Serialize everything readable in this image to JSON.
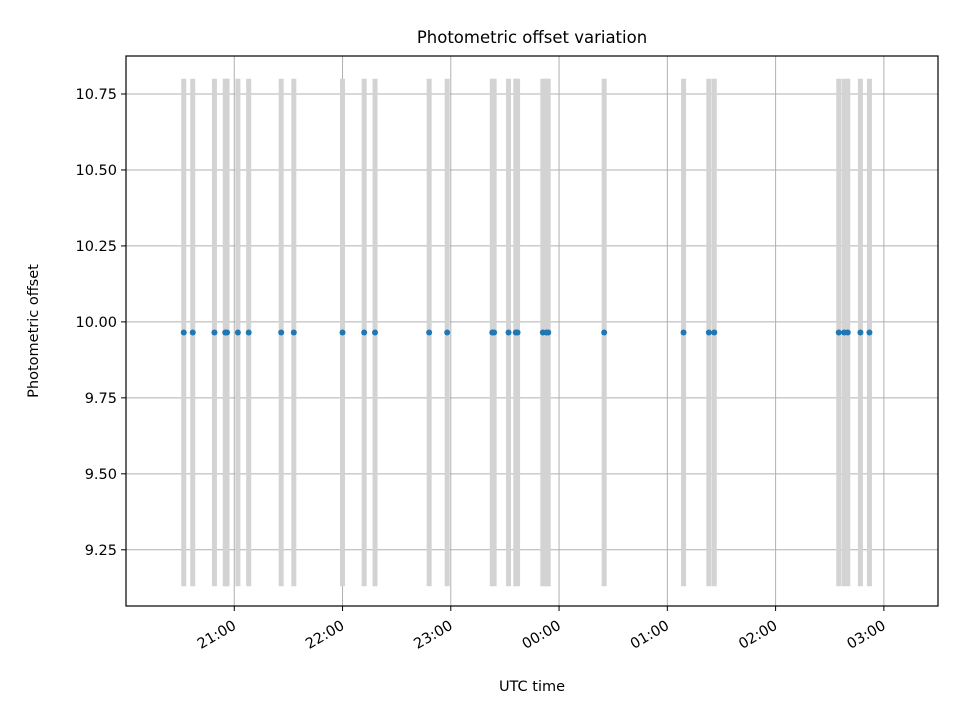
{
  "chart_data": {
    "type": "scatter",
    "title": "Photometric offset variation",
    "xlabel": "UTC time",
    "ylabel": "Photometric offset",
    "x_axis": {
      "kind": "time",
      "start": "20:00",
      "end": "03:30",
      "ticks": [
        {
          "time": "21:00",
          "label": "21:00"
        },
        {
          "time": "22:00",
          "label": "22:00"
        },
        {
          "time": "23:00",
          "label": "23:00"
        },
        {
          "time": "00:00",
          "label": "00:00"
        },
        {
          "time": "01:00",
          "label": "01:00"
        },
        {
          "time": "02:00",
          "label": "02:00"
        },
        {
          "time": "03:00",
          "label": "03:00"
        }
      ]
    },
    "y_axis": {
      "range": [
        9.065,
        10.875
      ],
      "ticks": [
        {
          "value": 9.25,
          "label": "9.25"
        },
        {
          "value": 9.5,
          "label": "9.50"
        },
        {
          "value": 9.75,
          "label": "9.75"
        },
        {
          "value": 10.0,
          "label": "10.00"
        },
        {
          "value": 10.25,
          "label": "10.25"
        },
        {
          "value": 10.5,
          "label": "10.50"
        },
        {
          "value": 10.75,
          "label": "10.75"
        }
      ]
    },
    "grid": true,
    "error_bar_range": [
      9.13,
      10.8
    ],
    "series": [
      {
        "marker_color": "#1f77b4",
        "error_bar_color": "#d3d3d3",
        "x": [
          "20:32",
          "20:37",
          "20:49",
          "20:55",
          "20:56",
          "21:02",
          "21:08",
          "21:26",
          "21:33",
          "22:00",
          "22:12",
          "22:18",
          "22:48",
          "22:58",
          "23:23",
          "23:24",
          "23:32",
          "23:36",
          "23:37",
          "23:51",
          "23:53",
          "23:54",
          "00:25",
          "01:09",
          "01:23",
          "01:26",
          "02:35",
          "02:38",
          "02:40",
          "02:47",
          "02:52"
        ],
        "y": [
          9.965,
          9.965,
          9.965,
          9.965,
          9.965,
          9.965,
          9.965,
          9.965,
          9.965,
          9.965,
          9.965,
          9.965,
          9.965,
          9.965,
          9.965,
          9.965,
          9.965,
          9.965,
          9.965,
          9.965,
          9.965,
          9.965,
          9.965,
          9.965,
          9.965,
          9.965,
          9.965,
          9.965,
          9.965,
          9.965,
          9.965
        ]
      }
    ]
  }
}
